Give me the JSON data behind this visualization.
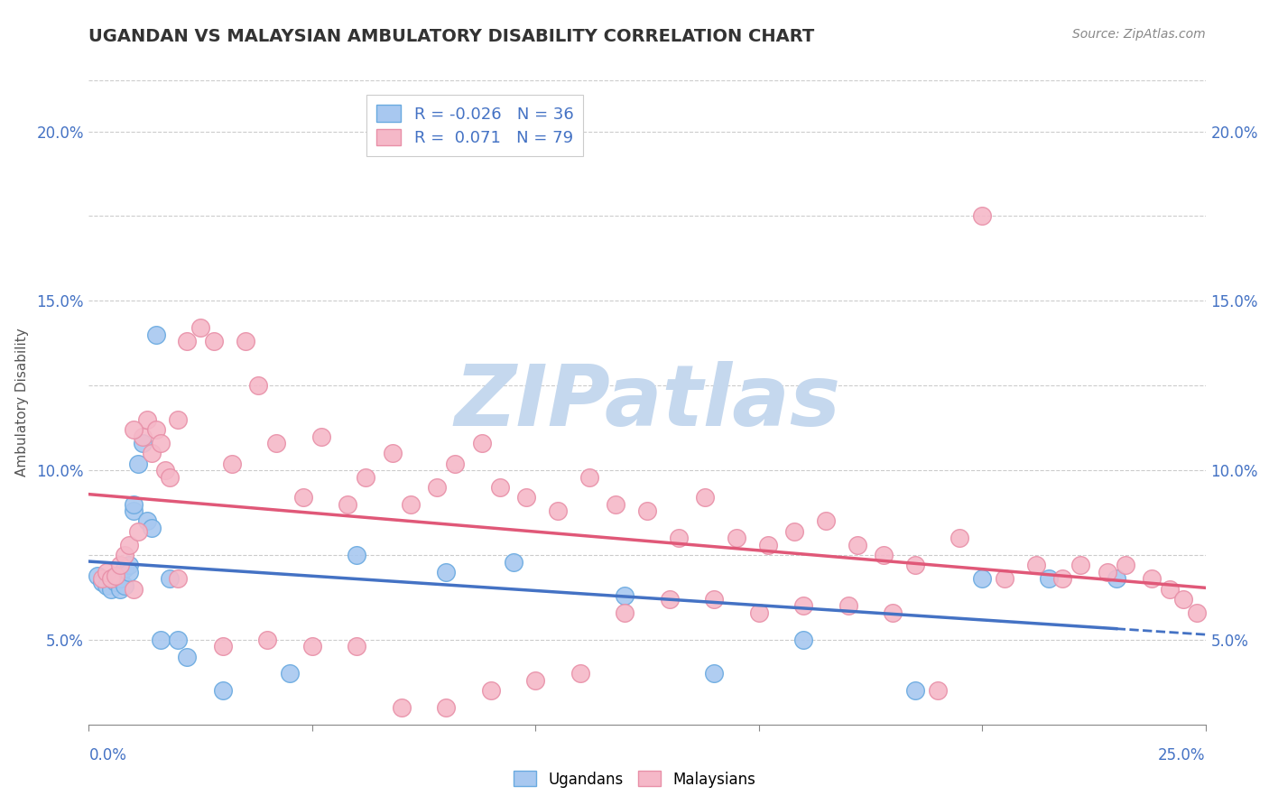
{
  "title": "UGANDAN VS MALAYSIAN AMBULATORY DISABILITY CORRELATION CHART",
  "source": "Source: ZipAtlas.com",
  "ylabel": "Ambulatory Disability",
  "yticks": [
    0.05,
    0.075,
    0.1,
    0.125,
    0.15,
    0.175,
    0.2
  ],
  "ytick_labels_left": [
    "5.0%",
    "",
    "10.0%",
    "",
    "15.0%",
    "",
    "20.0%"
  ],
  "ytick_labels_right": [
    "5.0%",
    "",
    "10.0%",
    "",
    "15.0%",
    "",
    "20.0%"
  ],
  "xlim": [
    0.0,
    0.25
  ],
  "ylim": [
    0.025,
    0.215
  ],
  "ugandan_R": -0.026,
  "ugandan_N": 36,
  "malaysian_R": 0.071,
  "malaysian_N": 79,
  "ugandan_color": "#a8c8f0",
  "ugandan_edge_color": "#6aaae0",
  "ugandan_line_color": "#4472c4",
  "malaysian_color": "#f5b8c8",
  "malaysian_edge_color": "#e890a8",
  "malaysian_line_color": "#e05878",
  "background_color": "#ffffff",
  "grid_color": "#cccccc",
  "watermark_color": "#c5d8ee",
  "title_fontsize": 14,
  "axis_label_fontsize": 11,
  "tick_fontsize": 12,
  "legend_fontsize": 13,
  "ugandan_x": [
    0.002,
    0.003,
    0.004,
    0.005,
    0.005,
    0.006,
    0.006,
    0.007,
    0.007,
    0.008,
    0.008,
    0.009,
    0.009,
    0.01,
    0.01,
    0.011,
    0.012,
    0.013,
    0.014,
    0.015,
    0.016,
    0.018,
    0.02,
    0.022,
    0.03,
    0.045,
    0.06,
    0.08,
    0.095,
    0.12,
    0.14,
    0.16,
    0.185,
    0.2,
    0.215,
    0.23
  ],
  "ugandan_y": [
    0.069,
    0.067,
    0.066,
    0.065,
    0.068,
    0.067,
    0.069,
    0.065,
    0.068,
    0.066,
    0.071,
    0.072,
    0.07,
    0.088,
    0.09,
    0.102,
    0.108,
    0.085,
    0.083,
    0.14,
    0.05,
    0.068,
    0.05,
    0.045,
    0.035,
    0.04,
    0.075,
    0.07,
    0.073,
    0.063,
    0.04,
    0.05,
    0.035,
    0.068,
    0.068,
    0.068
  ],
  "malaysian_x": [
    0.003,
    0.004,
    0.005,
    0.006,
    0.007,
    0.008,
    0.009,
    0.01,
    0.011,
    0.012,
    0.013,
    0.014,
    0.015,
    0.016,
    0.017,
    0.018,
    0.02,
    0.022,
    0.025,
    0.028,
    0.032,
    0.035,
    0.038,
    0.042,
    0.048,
    0.052,
    0.058,
    0.062,
    0.068,
    0.072,
    0.078,
    0.082,
    0.088,
    0.092,
    0.098,
    0.105,
    0.112,
    0.118,
    0.125,
    0.132,
    0.138,
    0.145,
    0.152,
    0.158,
    0.165,
    0.172,
    0.178,
    0.185,
    0.195,
    0.2,
    0.205,
    0.212,
    0.218,
    0.222,
    0.228,
    0.232,
    0.238,
    0.242,
    0.245,
    0.248,
    0.01,
    0.02,
    0.03,
    0.04,
    0.05,
    0.06,
    0.07,
    0.08,
    0.09,
    0.1,
    0.11,
    0.12,
    0.13,
    0.14,
    0.15,
    0.16,
    0.17,
    0.18,
    0.19
  ],
  "malaysian_y": [
    0.068,
    0.07,
    0.068,
    0.069,
    0.072,
    0.075,
    0.078,
    0.065,
    0.082,
    0.11,
    0.115,
    0.105,
    0.112,
    0.108,
    0.1,
    0.098,
    0.115,
    0.138,
    0.142,
    0.138,
    0.102,
    0.138,
    0.125,
    0.108,
    0.092,
    0.11,
    0.09,
    0.098,
    0.105,
    0.09,
    0.095,
    0.102,
    0.108,
    0.095,
    0.092,
    0.088,
    0.098,
    0.09,
    0.088,
    0.08,
    0.092,
    0.08,
    0.078,
    0.082,
    0.085,
    0.078,
    0.075,
    0.072,
    0.08,
    0.175,
    0.068,
    0.072,
    0.068,
    0.072,
    0.07,
    0.072,
    0.068,
    0.065,
    0.062,
    0.058,
    0.112,
    0.068,
    0.048,
    0.05,
    0.048,
    0.048,
    0.03,
    0.03,
    0.035,
    0.038,
    0.04,
    0.058,
    0.062,
    0.062,
    0.058,
    0.06,
    0.06,
    0.058,
    0.035
  ]
}
